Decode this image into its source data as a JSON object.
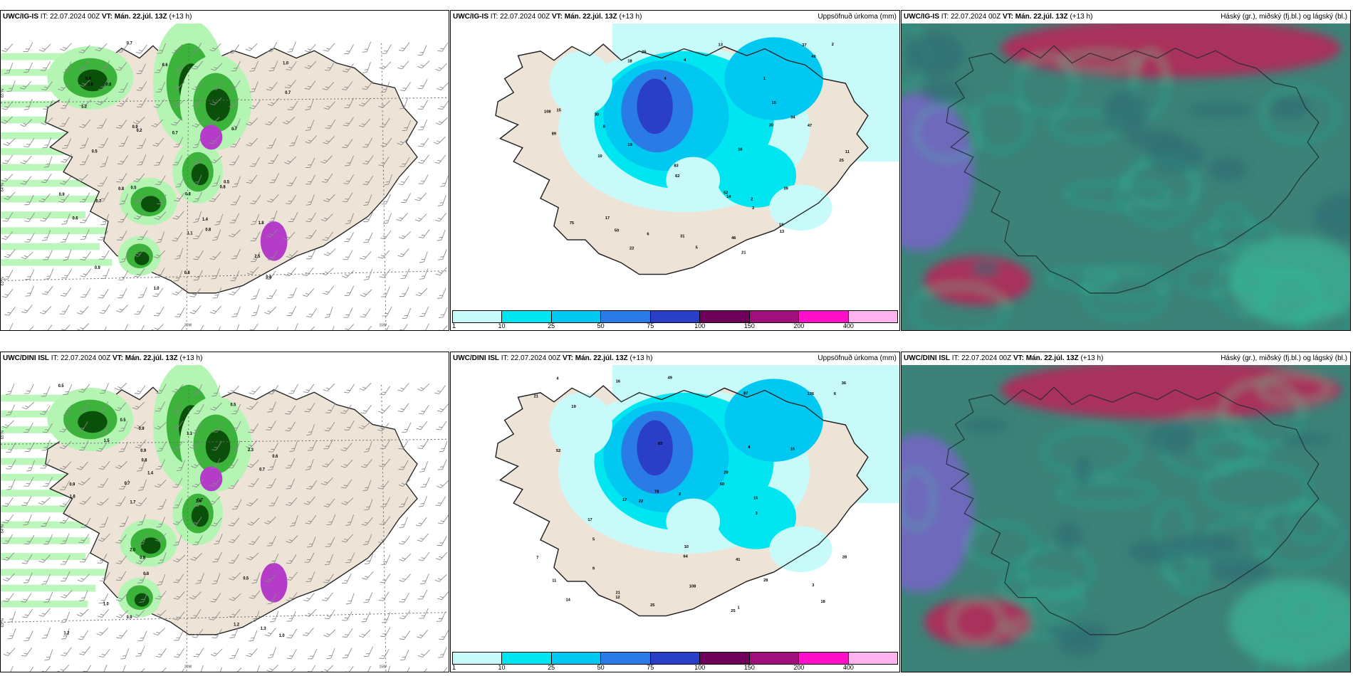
{
  "panels": [
    {
      "model": "UWC/IG-IS",
      "it_label": "IT:",
      "it": "22.07.2024 00Z",
      "vt_label": "VT:",
      "vt": "Mán. 22.júl. 13Z",
      "lead": "(+13 h)",
      "right": "",
      "axis": {
        "lat": [
          "65°N",
          "64°N",
          "63°N"
        ],
        "lon": [
          "20W",
          "15W"
        ]
      },
      "values": [
        "0.8",
        "0.8",
        "0.9",
        "0.6",
        "0.8",
        "0.7",
        "1.2",
        "0.8",
        "0.5",
        "1.0",
        "0.7",
        "0.8",
        "0.5",
        "0.6",
        "0.9",
        "0.2",
        "1.8",
        "0.7",
        "1.4",
        "0.8",
        "2.5",
        "0.8",
        "1.0",
        "0.8",
        "0.7",
        "0.9",
        "1.1",
        "0.7",
        "0.5",
        "0.6"
      ]
    },
    {
      "model": "UWC/IG-IS",
      "it_label": "IT:",
      "it": "22.07.2024 00Z",
      "vt_label": "VT:",
      "vt": "Mán. 22.júl. 13Z",
      "lead": "(+13 h)",
      "right": "Uppsöfnuð úrkoma (mm)",
      "values": [
        "21",
        "18",
        "17",
        "30",
        "34",
        "46",
        "25",
        "18",
        "62",
        "50",
        "75",
        "108",
        "83",
        "52",
        "30",
        "37",
        "89",
        "46",
        "39",
        "47",
        "19",
        "14",
        "22",
        "13",
        "16",
        "15",
        "10",
        "8",
        "5",
        "4",
        "3",
        "2",
        "1",
        "6",
        "26",
        "31",
        "13",
        "15",
        "11",
        "2",
        "4"
      ]
    },
    {
      "model": "UWC/IG-IS",
      "it_label": "IT:",
      "it": "22.07.2024 00Z",
      "vt_label": "VT:",
      "vt": "Mán. 22.júl. 13Z",
      "lead": "(+13 h)",
      "right": "Háský (gr.), miðský (fj.bl.) og lágský (bl.)"
    },
    {
      "model": "UWC/DINI ISL",
      "it_label": "IT:",
      "it": "22.07.2024 00Z",
      "vt_label": "VT:",
      "vt": "Mán. 22.júl. 13Z",
      "lead": "(+13 h)",
      "right": "",
      "axis": {
        "lat": [
          "65°N",
          "64°N",
          "63°N"
        ],
        "lon": [
          "20W",
          "15W"
        ]
      },
      "values": [
        "0.9",
        "2.0",
        "0.8",
        "0.9",
        "1.0",
        "0.8",
        "0.5",
        "1.2",
        "0.6",
        "0.7",
        "1.3",
        "0.9",
        "1.4",
        "2.3",
        "0.5",
        "1.7",
        "1.5",
        "1.0",
        "0.8",
        "0.9",
        "0.5",
        "1.8",
        "0.7",
        "1.1",
        "0.5",
        "0.7",
        "1.4",
        "1.2"
      ]
    },
    {
      "model": "UWC/DINI ISL",
      "it_label": "IT:",
      "it": "22.07.2024 00Z",
      "vt_label": "VT:",
      "vt": "Mán. 22.júl. 13Z",
      "lead": "(+13 h)",
      "right": "Uppsöfnuð úrkoma (mm)",
      "values": [
        "25",
        "25",
        "21",
        "28",
        "16",
        "19",
        "17",
        "18",
        "49",
        "83",
        "126",
        "108",
        "78",
        "64",
        "87",
        "60",
        "52",
        "12",
        "22",
        "21",
        "41",
        "36",
        "20",
        "14",
        "16",
        "17",
        "7",
        "5",
        "4",
        "3",
        "2",
        "1",
        "10",
        "6",
        "9",
        "15",
        "28",
        "11",
        "4",
        "3"
      ]
    },
    {
      "model": "UWC/DINI ISL",
      "it_label": "IT:",
      "it": "22.07.2024 00Z",
      "vt_label": "VT:",
      "vt": "Mán. 22.júl. 13Z",
      "lead": "(+13 h)",
      "right": "Háský (gr.), miðský (fj.bl.) og lágský (bl.)"
    }
  ],
  "colorbar": {
    "labels": [
      "1",
      "10",
      "25",
      "50",
      "75",
      "100",
      "150",
      "200",
      "400"
    ],
    "colors": [
      "#c8fafa",
      "#00e6f0",
      "#00c8f0",
      "#2b7be6",
      "#2b3ec8",
      "#6e005a",
      "#a0107a",
      "#ff10c8",
      "#ffb4f0"
    ]
  },
  "colors": {
    "land": "#ede3d6",
    "sea": "#ffffff",
    "precip_light": "#b4f5b4",
    "precip_mid": "#3cb43c",
    "precip_dark": "#0a500a",
    "precip_violet": "#b43cc8",
    "accum_sea": "#c8fafa",
    "cloud_base": "#3c8278",
    "cloud_high": "#b4285a",
    "cloud_mid": "#7864c8",
    "cloud_low": "#1ec8a0"
  }
}
